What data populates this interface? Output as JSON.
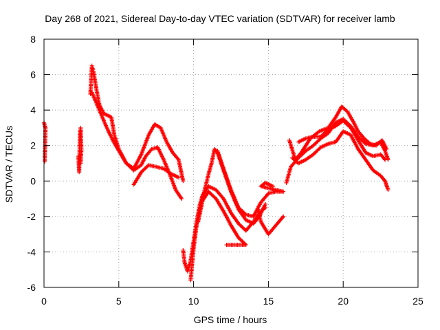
{
  "chart_data": {
    "type": "scatter",
    "title": "Day 268 of 2021, Sidereal Day-to-day VTEC variation (SDTVAR) for receiver lamb",
    "xlabel": "GPS time / hours",
    "ylabel": "SDTVAR / TECUs",
    "xlim": [
      0,
      25
    ],
    "ylim": [
      -6,
      8
    ],
    "xticks": [
      0,
      5,
      10,
      15,
      20,
      25
    ],
    "yticks": [
      -6,
      -4,
      -2,
      0,
      2,
      4,
      6,
      8
    ],
    "grid": true,
    "marker": "+",
    "color": "#ff0000",
    "legend": "none",
    "series": [
      {
        "points": [
          [
            0.0,
            3.3
          ],
          [
            0.05,
            3.1
          ],
          [
            0.1,
            3.0
          ],
          [
            0.05,
            1.1
          ]
        ]
      },
      {
        "points": [
          [
            2.3,
            1.4
          ],
          [
            2.35,
            0.5
          ],
          [
            2.4,
            2.7
          ],
          [
            2.45,
            3.0
          ],
          [
            2.5,
            1.8
          ],
          [
            2.45,
            1.0
          ]
        ]
      },
      {
        "points": [
          [
            3.1,
            4.9
          ],
          [
            3.2,
            6.5
          ],
          [
            3.3,
            6.2
          ],
          [
            3.5,
            5.2
          ],
          [
            3.7,
            4.3
          ],
          [
            4.0,
            3.8
          ],
          [
            4.5,
            3.6
          ],
          [
            4.7,
            2.6
          ],
          [
            5.0,
            1.8
          ],
          [
            5.5,
            1.0
          ],
          [
            6.0,
            0.6
          ],
          [
            6.5,
            0.9
          ],
          [
            6.8,
            1.4
          ],
          [
            7.2,
            1.8
          ],
          [
            7.6,
            1.9
          ],
          [
            8.0,
            1.2
          ],
          [
            8.4,
            0.4
          ],
          [
            8.8,
            -0.5
          ],
          [
            9.2,
            -1.0
          ]
        ]
      },
      {
        "points": [
          [
            3.2,
            5.0
          ],
          [
            3.5,
            4.4
          ],
          [
            3.8,
            3.8
          ],
          [
            4.2,
            3.0
          ],
          [
            4.6,
            2.3
          ],
          [
            5.0,
            1.7
          ],
          [
            5.5,
            1.0
          ],
          [
            6.0,
            0.7
          ],
          [
            6.5,
            1.5
          ],
          [
            7.0,
            2.6
          ],
          [
            7.4,
            3.2
          ],
          [
            7.8,
            3.0
          ],
          [
            8.2,
            2.2
          ],
          [
            8.6,
            1.6
          ],
          [
            9.0,
            1.2
          ],
          [
            9.3,
            0.0
          ]
        ]
      },
      {
        "points": [
          [
            6.0,
            -0.2
          ],
          [
            6.5,
            0.5
          ],
          [
            7.0,
            0.9
          ],
          [
            7.5,
            0.8
          ],
          [
            8.0,
            0.7
          ],
          [
            8.5,
            0.4
          ],
          [
            9.0,
            0.2
          ]
        ]
      },
      {
        "points": [
          [
            9.3,
            -3.9
          ],
          [
            9.4,
            -4.6
          ],
          [
            9.6,
            -5.1
          ],
          [
            9.8,
            -4.5
          ],
          [
            10.0,
            -3.4
          ],
          [
            10.2,
            -2.3
          ],
          [
            10.4,
            -1.4
          ],
          [
            10.6,
            -0.8
          ],
          [
            11.0,
            -0.3
          ],
          [
            11.5,
            -0.5
          ],
          [
            12.0,
            -1.0
          ],
          [
            12.5,
            -1.8
          ],
          [
            13.0,
            -2.4
          ],
          [
            13.5,
            -2.8
          ],
          [
            14.0,
            -2.3
          ],
          [
            14.5,
            -1.7
          ],
          [
            14.8,
            -1.5
          ]
        ]
      },
      {
        "points": [
          [
            9.8,
            -5.6
          ],
          [
            10.0,
            -3.8
          ],
          [
            10.2,
            -2.5
          ],
          [
            10.5,
            -1.3
          ],
          [
            10.8,
            -0.3
          ],
          [
            11.0,
            0.4
          ],
          [
            11.2,
            1.0
          ],
          [
            11.4,
            1.8
          ],
          [
            11.6,
            1.6
          ],
          [
            12.0,
            0.6
          ],
          [
            12.5,
            -0.6
          ],
          [
            13.0,
            -1.6
          ],
          [
            13.5,
            -2.2
          ],
          [
            14.0,
            -2.4
          ],
          [
            14.4,
            -2.0
          ],
          [
            14.8,
            -1.3
          ]
        ]
      },
      {
        "points": [
          [
            10.3,
            -2.3
          ],
          [
            10.6,
            -1.1
          ],
          [
            11.0,
            -0.6
          ],
          [
            11.5,
            -1.0
          ],
          [
            12.0,
            -1.7
          ],
          [
            12.5,
            -2.5
          ],
          [
            13.0,
            -3.2
          ],
          [
            13.5,
            -3.6
          ],
          [
            12.2,
            -3.6
          ]
        ]
      },
      {
        "points": [
          [
            11.6,
            1.7
          ],
          [
            12.0,
            0.7
          ],
          [
            12.5,
            -0.5
          ],
          [
            13.0,
            -1.5
          ],
          [
            13.5,
            -1.9
          ],
          [
            14.0,
            -2.0
          ],
          [
            14.5,
            -1.2
          ],
          [
            15.0,
            -0.7
          ],
          [
            15.5,
            -0.6
          ],
          [
            16.0,
            -0.6
          ],
          [
            14.5,
            -0.3
          ],
          [
            14.8,
            -0.1
          ],
          [
            15.3,
            -0.3
          ]
        ]
      },
      {
        "points": [
          [
            14.3,
            -1.6
          ],
          [
            14.5,
            -2.3
          ],
          [
            15.0,
            -3.0
          ],
          [
            15.5,
            -2.5
          ],
          [
            16.0,
            -2.0
          ]
        ]
      },
      {
        "points": [
          [
            16.2,
            -0.1
          ],
          [
            16.5,
            0.8
          ],
          [
            17.0,
            1.3
          ],
          [
            17.5,
            1.7
          ],
          [
            18.0,
            2.0
          ],
          [
            18.5,
            2.4
          ],
          [
            19.0,
            2.7
          ],
          [
            19.5,
            3.3
          ],
          [
            20.0,
            3.5
          ],
          [
            20.5,
            3.1
          ],
          [
            21.0,
            2.5
          ],
          [
            21.5,
            2.1
          ],
          [
            22.0,
            2.0
          ],
          [
            22.5,
            2.2
          ],
          [
            22.8,
            1.7
          ],
          [
            23.0,
            1.2
          ]
        ]
      },
      {
        "points": [
          [
            16.4,
            2.3
          ],
          [
            16.8,
            1.2
          ],
          [
            17.2,
            1.6
          ],
          [
            17.8,
            2.4
          ],
          [
            18.4,
            2.8
          ],
          [
            19.0,
            3.0
          ],
          [
            19.5,
            3.6
          ],
          [
            19.9,
            4.2
          ],
          [
            20.3,
            3.9
          ],
          [
            20.7,
            3.3
          ],
          [
            21.0,
            2.8
          ],
          [
            21.4,
            2.4
          ],
          [
            21.8,
            2.1
          ],
          [
            22.2,
            2.0
          ],
          [
            22.6,
            2.3
          ],
          [
            22.9,
            1.8
          ]
        ]
      },
      {
        "points": [
          [
            16.6,
            1.3
          ],
          [
            17.0,
            1.0
          ],
          [
            17.5,
            1.2
          ],
          [
            18.0,
            1.5
          ],
          [
            18.5,
            1.9
          ],
          [
            19.0,
            2.1
          ],
          [
            19.5,
            2.2
          ],
          [
            20.0,
            2.8
          ],
          [
            20.5,
            2.6
          ],
          [
            21.0,
            1.8
          ],
          [
            21.5,
            1.2
          ],
          [
            22.0,
            0.6
          ],
          [
            22.5,
            0.3
          ],
          [
            22.8,
            0.0
          ],
          [
            23.0,
            -0.5
          ]
        ]
      },
      {
        "points": [
          [
            17.0,
            2.2
          ],
          [
            17.5,
            2.4
          ],
          [
            18.0,
            2.5
          ],
          [
            18.5,
            2.5
          ],
          [
            19.0,
            2.9
          ],
          [
            19.5,
            3.1
          ],
          [
            20.0,
            3.4
          ],
          [
            20.5,
            3.0
          ],
          [
            21.0,
            2.3
          ],
          [
            21.5,
            1.6
          ],
          [
            22.0,
            1.4
          ],
          [
            22.5,
            1.5
          ],
          [
            22.8,
            1.2
          ]
        ]
      }
    ]
  }
}
